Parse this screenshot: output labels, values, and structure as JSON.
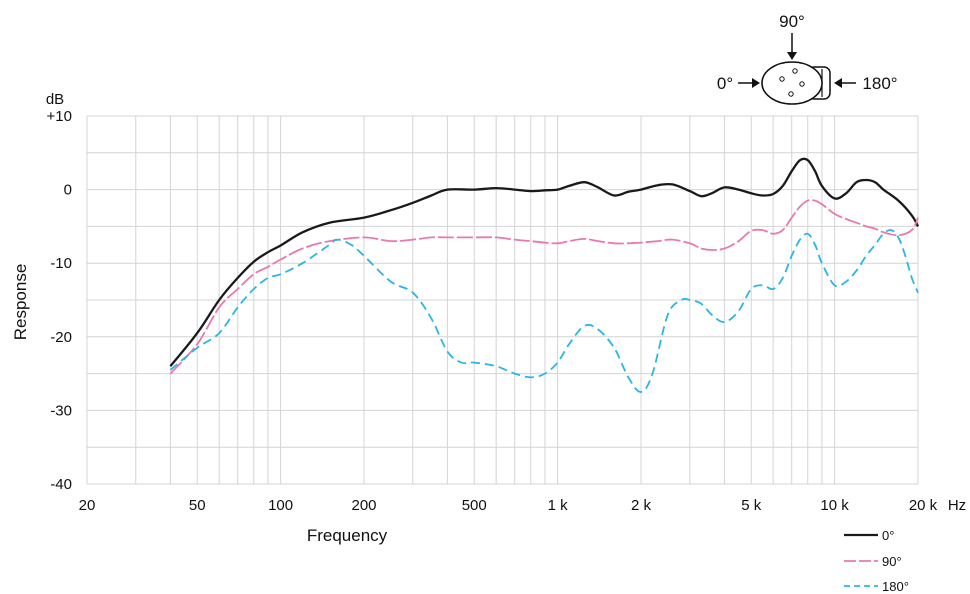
{
  "chart_data": {
    "type": "line",
    "title": "",
    "xlabel": "Frequency",
    "ylabel": "Response",
    "x_unit": "Hz",
    "y_unit": "dB",
    "x_scale": "log",
    "xlim": [
      20,
      20000
    ],
    "ylim": [
      -40,
      10
    ],
    "grid": true,
    "legend_position": "bottom-right",
    "x_tick_values": [
      20,
      50,
      100,
      200,
      500,
      1000,
      2000,
      5000,
      10000,
      20000
    ],
    "x_tick_labels": [
      "20",
      "50",
      "100",
      "200",
      "500",
      "1 k",
      "2 k",
      "5 k",
      "10 k",
      "20 k"
    ],
    "y_tick_values": [
      10,
      0,
      -10,
      -20,
      -30,
      -40
    ],
    "y_tick_labels": [
      "+10",
      "0",
      "-10",
      "-20",
      "-30",
      "-40"
    ],
    "series": [
      {
        "name": "0°",
        "color": "#1a1a1a",
        "dash": "solid",
        "points": [
          [
            40,
            -24
          ],
          [
            50,
            -19.5
          ],
          [
            60,
            -15
          ],
          [
            70,
            -12
          ],
          [
            80,
            -9.8
          ],
          [
            90,
            -8.5
          ],
          [
            100,
            -7.6
          ],
          [
            120,
            -5.8
          ],
          [
            150,
            -4.5
          ],
          [
            200,
            -3.8
          ],
          [
            250,
            -2.8
          ],
          [
            300,
            -1.8
          ],
          [
            350,
            -0.8
          ],
          [
            400,
            0
          ],
          [
            500,
            0
          ],
          [
            600,
            0.2
          ],
          [
            700,
            0
          ],
          [
            800,
            -0.2
          ],
          [
            900,
            -0.1
          ],
          [
            1000,
            0
          ],
          [
            1100,
            0.5
          ],
          [
            1250,
            1
          ],
          [
            1400,
            0.3
          ],
          [
            1600,
            -0.8
          ],
          [
            1800,
            -0.3
          ],
          [
            2000,
            0
          ],
          [
            2300,
            0.6
          ],
          [
            2600,
            0.7
          ],
          [
            3000,
            -0.2
          ],
          [
            3300,
            -0.9
          ],
          [
            3600,
            -0.5
          ],
          [
            4000,
            0.3
          ],
          [
            4500,
            0
          ],
          [
            5000,
            -0.5
          ],
          [
            5500,
            -0.8
          ],
          [
            6000,
            -0.6
          ],
          [
            6500,
            0.5
          ],
          [
            7000,
            2.5
          ],
          [
            7500,
            4
          ],
          [
            8000,
            4
          ],
          [
            8500,
            2.5
          ],
          [
            9000,
            0.5
          ],
          [
            10000,
            -1.2
          ],
          [
            11000,
            -0.5
          ],
          [
            12000,
            1
          ],
          [
            13000,
            1.3
          ],
          [
            14000,
            1
          ],
          [
            15000,
            0
          ],
          [
            17000,
            -1.5
          ],
          [
            19000,
            -3.5
          ],
          [
            20000,
            -5
          ]
        ]
      },
      {
        "name": "90°",
        "color": "#e879b0",
        "dash": "long-dash",
        "points": [
          [
            40,
            -25
          ],
          [
            50,
            -21
          ],
          [
            60,
            -16
          ],
          [
            70,
            -13.5
          ],
          [
            80,
            -11.5
          ],
          [
            90,
            -10.5
          ],
          [
            100,
            -9.5
          ],
          [
            120,
            -8
          ],
          [
            150,
            -7
          ],
          [
            200,
            -6.5
          ],
          [
            250,
            -7
          ],
          [
            300,
            -6.8
          ],
          [
            350,
            -6.5
          ],
          [
            400,
            -6.5
          ],
          [
            500,
            -6.5
          ],
          [
            600,
            -6.5
          ],
          [
            700,
            -6.8
          ],
          [
            800,
            -7
          ],
          [
            900,
            -7.2
          ],
          [
            1000,
            -7.3
          ],
          [
            1100,
            -7
          ],
          [
            1250,
            -6.7
          ],
          [
            1400,
            -7
          ],
          [
            1600,
            -7.3
          ],
          [
            1800,
            -7.3
          ],
          [
            2000,
            -7.2
          ],
          [
            2300,
            -7
          ],
          [
            2600,
            -6.8
          ],
          [
            3000,
            -7.3
          ],
          [
            3300,
            -8
          ],
          [
            3600,
            -8.2
          ],
          [
            4000,
            -8
          ],
          [
            4500,
            -7
          ],
          [
            5000,
            -5.6
          ],
          [
            5500,
            -5.5
          ],
          [
            6000,
            -6
          ],
          [
            6500,
            -5.5
          ],
          [
            7000,
            -3.8
          ],
          [
            7500,
            -2.3
          ],
          [
            8000,
            -1.5
          ],
          [
            8500,
            -1.5
          ],
          [
            9000,
            -2
          ],
          [
            10000,
            -3.3
          ],
          [
            11000,
            -4
          ],
          [
            12000,
            -4.5
          ],
          [
            13000,
            -5
          ],
          [
            14000,
            -5.3
          ],
          [
            15000,
            -5.8
          ],
          [
            17000,
            -6.2
          ],
          [
            19000,
            -5.5
          ],
          [
            20000,
            -3.8
          ]
        ]
      },
      {
        "name": "180°",
        "color": "#29b6e6",
        "dash": "dashed",
        "points": [
          [
            40,
            -24.5
          ],
          [
            50,
            -21.5
          ],
          [
            60,
            -19.5
          ],
          [
            70,
            -16
          ],
          [
            80,
            -13.5
          ],
          [
            90,
            -12
          ],
          [
            100,
            -11.5
          ],
          [
            120,
            -10
          ],
          [
            150,
            -7.5
          ],
          [
            160,
            -6.8
          ],
          [
            180,
            -7.5
          ],
          [
            200,
            -9
          ],
          [
            250,
            -12.5
          ],
          [
            300,
            -14
          ],
          [
            350,
            -17.5
          ],
          [
            400,
            -22
          ],
          [
            450,
            -23.5
          ],
          [
            500,
            -23.5
          ],
          [
            600,
            -24
          ],
          [
            700,
            -25
          ],
          [
            800,
            -25.5
          ],
          [
            900,
            -25
          ],
          [
            1000,
            -23.5
          ],
          [
            1100,
            -21
          ],
          [
            1250,
            -18.5
          ],
          [
            1400,
            -19
          ],
          [
            1600,
            -21.5
          ],
          [
            1800,
            -25.5
          ],
          [
            2000,
            -27.5
          ],
          [
            2200,
            -25
          ],
          [
            2500,
            -17
          ],
          [
            2800,
            -15
          ],
          [
            3000,
            -15
          ],
          [
            3300,
            -15.5
          ],
          [
            3600,
            -17
          ],
          [
            4000,
            -18
          ],
          [
            4500,
            -16.5
          ],
          [
            5000,
            -13.5
          ],
          [
            5500,
            -13
          ],
          [
            6000,
            -13.5
          ],
          [
            6500,
            -12
          ],
          [
            7000,
            -9
          ],
          [
            7500,
            -6.8
          ],
          [
            8000,
            -6
          ],
          [
            8500,
            -7.5
          ],
          [
            9000,
            -10
          ],
          [
            10000,
            -13
          ],
          [
            11000,
            -12.5
          ],
          [
            12000,
            -11
          ],
          [
            13000,
            -9
          ],
          [
            14000,
            -7.5
          ],
          [
            15000,
            -6
          ],
          [
            16000,
            -5.5
          ],
          [
            17000,
            -6.5
          ],
          [
            18000,
            -9
          ],
          [
            19000,
            -12
          ],
          [
            20000,
            -14
          ]
        ]
      }
    ]
  },
  "diagram": {
    "label_front": "0°",
    "label_side": "90°",
    "label_rear": "180°"
  }
}
